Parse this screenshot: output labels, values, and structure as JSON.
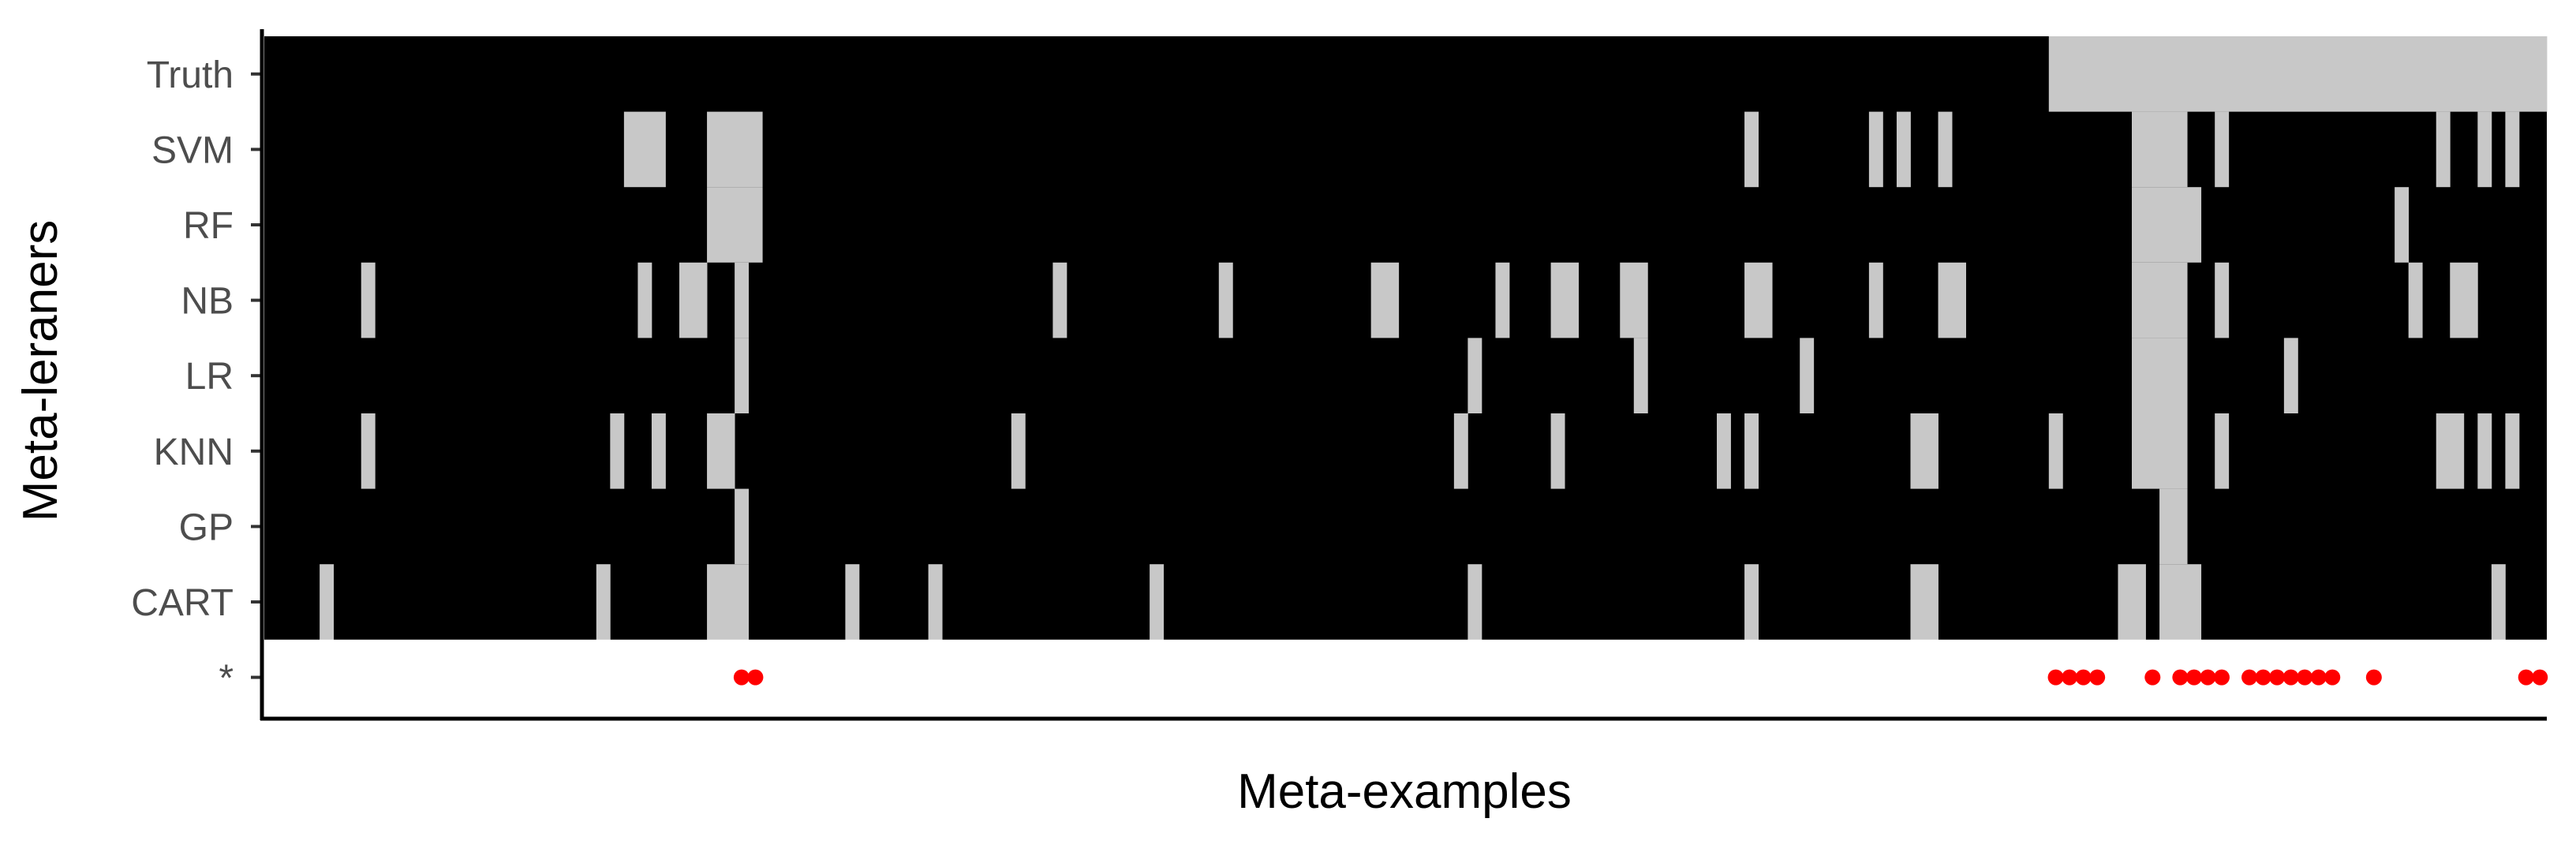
{
  "chart_data": {
    "type": "heatmap",
    "title": "",
    "xlabel": "Meta-examples",
    "ylabel": "Meta-leraners",
    "n_examples": 165,
    "rows": [
      "Truth",
      "SVM",
      "RF",
      "NB",
      "LR",
      "KNN",
      "GP",
      "CART",
      "*"
    ],
    "colors": {
      "zero": "#000000",
      "one": "#c8c8c8",
      "marker": "#ff0000",
      "marker_row_bg": "#ffffff"
    },
    "grid": false,
    "legend": "none",
    "cells_value_1": {
      "Truth": [
        [
          129,
          164
        ]
      ],
      "SVM": [
        [
          26,
          28
        ],
        [
          32,
          35
        ],
        [
          107,
          107
        ],
        [
          116,
          116
        ],
        [
          118,
          118
        ],
        [
          121,
          121
        ],
        [
          135,
          138
        ],
        [
          141,
          141
        ],
        [
          157,
          157
        ],
        [
          160,
          160
        ],
        [
          162,
          162
        ]
      ],
      "RF": [
        [
          32,
          35
        ],
        [
          135,
          139
        ],
        [
          154,
          154
        ]
      ],
      "NB": [
        [
          7,
          7
        ],
        [
          27,
          27
        ],
        [
          30,
          31
        ],
        [
          34,
          34
        ],
        [
          57,
          57
        ],
        [
          69,
          69
        ],
        [
          80,
          81
        ],
        [
          89,
          89
        ],
        [
          93,
          94
        ],
        [
          98,
          99
        ],
        [
          107,
          108
        ],
        [
          116,
          116
        ],
        [
          121,
          122
        ],
        [
          135,
          138
        ],
        [
          141,
          141
        ],
        [
          155,
          155
        ],
        [
          158,
          159
        ]
      ],
      "LR": [
        [
          34,
          34
        ],
        [
          87,
          87
        ],
        [
          99,
          99
        ],
        [
          111,
          111
        ],
        [
          135,
          138
        ],
        [
          146,
          146
        ]
      ],
      "KNN": [
        [
          7,
          7
        ],
        [
          25,
          25
        ],
        [
          28,
          28
        ],
        [
          32,
          33
        ],
        [
          54,
          54
        ],
        [
          86,
          86
        ],
        [
          93,
          93
        ],
        [
          105,
          105
        ],
        [
          107,
          107
        ],
        [
          119,
          120
        ],
        [
          129,
          129
        ],
        [
          135,
          138
        ],
        [
          141,
          141
        ],
        [
          157,
          158
        ],
        [
          160,
          160
        ],
        [
          162,
          162
        ]
      ],
      "GP": [
        [
          34,
          34
        ],
        [
          137,
          138
        ]
      ],
      "CART": [
        [
          4,
          4
        ],
        [
          24,
          24
        ],
        [
          32,
          34
        ],
        [
          42,
          42
        ],
        [
          48,
          48
        ],
        [
          64,
          64
        ],
        [
          87,
          87
        ],
        [
          107,
          107
        ],
        [
          119,
          120
        ],
        [
          134,
          135
        ],
        [
          137,
          139
        ],
        [
          161,
          161
        ]
      ]
    },
    "star_markers": [
      34,
      35,
      129,
      130,
      131,
      132,
      136,
      138,
      139,
      140,
      141,
      143,
      144,
      145,
      146,
      147,
      148,
      149,
      152,
      163,
      164
    ]
  }
}
